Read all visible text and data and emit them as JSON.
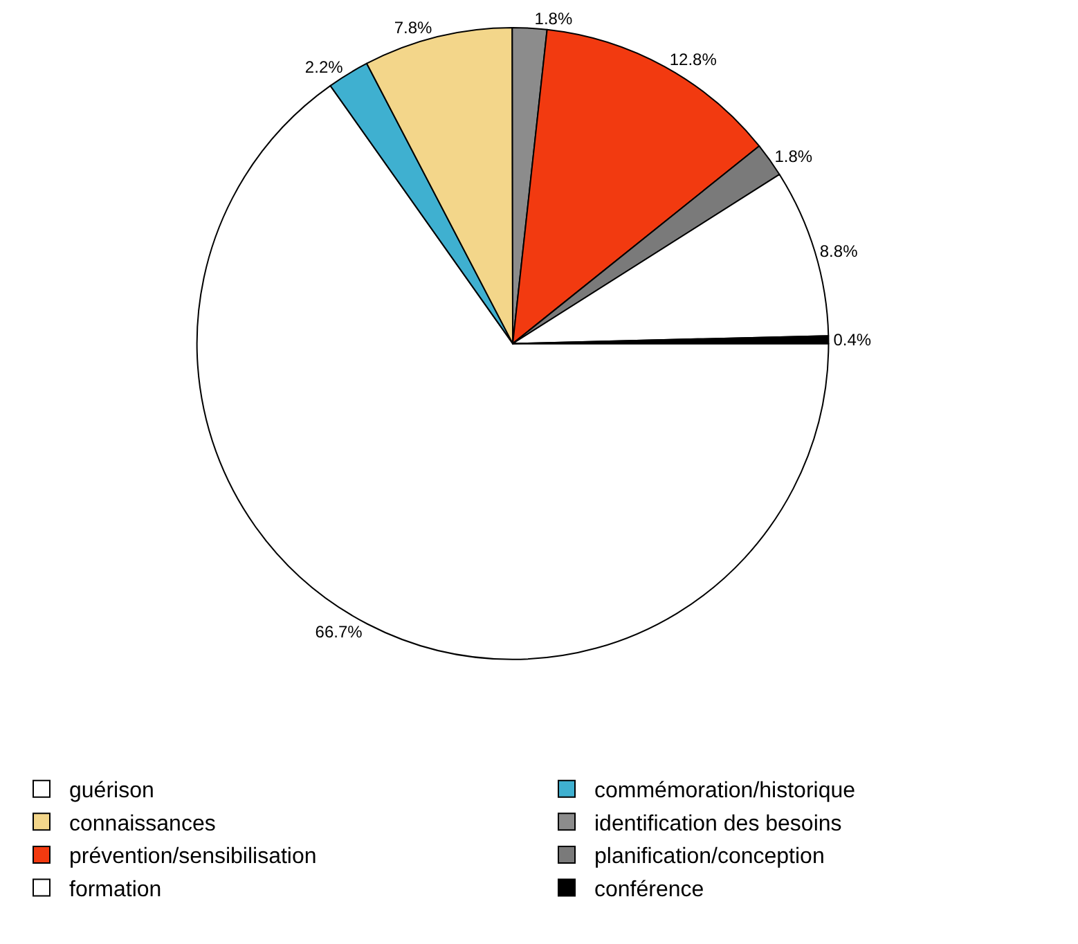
{
  "chart_data": {
    "type": "pie",
    "categories": [
      "guérison",
      "commémoration/historique",
      "connaissances",
      "identification des besoins",
      "prévention/sensibilisation",
      "planification/conception",
      "formation",
      "conférence"
    ],
    "values": [
      66.7,
      2.2,
      7.8,
      1.8,
      12.8,
      1.8,
      8.8,
      0.4
    ],
    "value_labels": [
      "66.7%",
      "2.2%",
      "7.8%",
      "1.8%",
      "12.8%",
      "1.8%",
      "8.8%",
      "0.4%"
    ],
    "colors": [
      "#ffffff",
      "#3fb0d0",
      "#f3d68a",
      "#8c8c8c",
      "#f23a10",
      "#7a7a7a",
      "#ffffff",
      "#000000"
    ],
    "legend": "bottom"
  }
}
